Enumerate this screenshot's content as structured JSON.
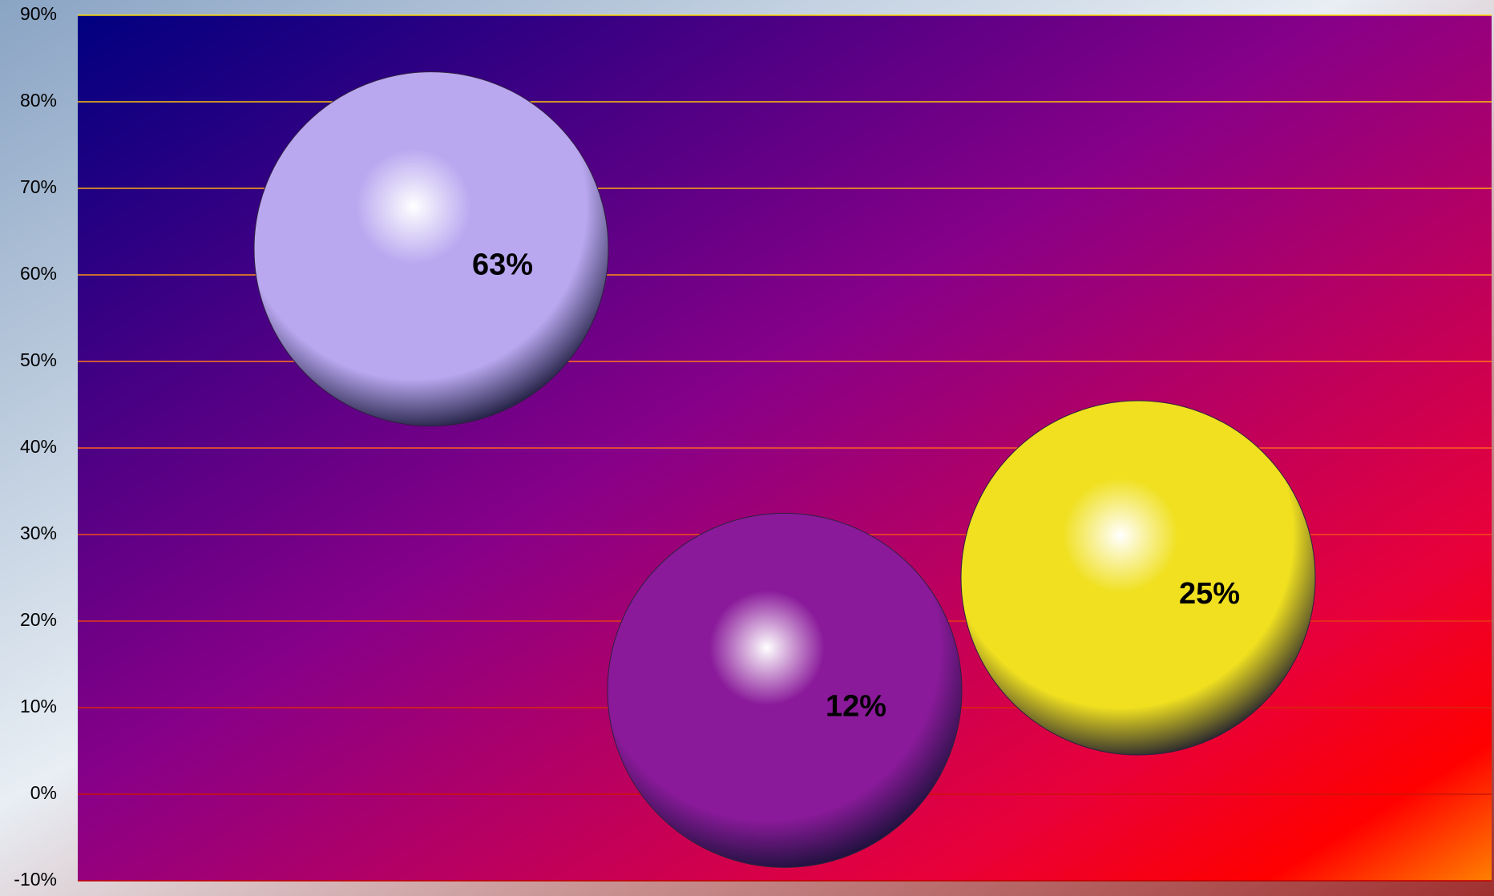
{
  "chart_data": {
    "type": "bubble",
    "x": [
      1,
      2,
      3
    ],
    "xlim": [
      0,
      4
    ],
    "ylim": [
      -10,
      90
    ],
    "yticks": [
      {
        "value": -10,
        "label": "-10%"
      },
      {
        "value": 0,
        "label": "0%"
      },
      {
        "value": 10,
        "label": "10%"
      },
      {
        "value": 20,
        "label": "20%"
      },
      {
        "value": 30,
        "label": "30%"
      },
      {
        "value": 40,
        "label": "40%"
      },
      {
        "value": 50,
        "label": "50%"
      },
      {
        "value": 60,
        "label": "60%"
      },
      {
        "value": 70,
        "label": "70%"
      },
      {
        "value": 80,
        "label": "80%"
      },
      {
        "value": 90,
        "label": "90%"
      }
    ],
    "grid": true,
    "values": [
      63,
      12,
      25
    ],
    "value_labels": [
      "63%",
      "12%",
      "25%"
    ],
    "colors": [
      "#b9a8f0",
      "#8a1a9a",
      "#f0e020"
    ]
  }
}
